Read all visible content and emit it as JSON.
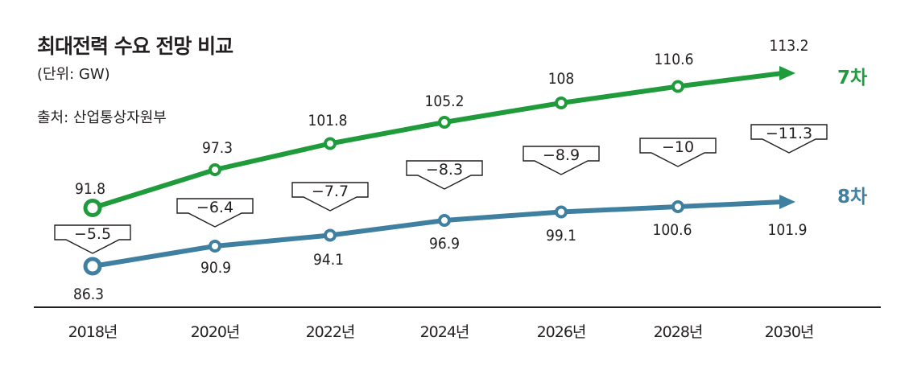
{
  "chart_data": {
    "type": "line",
    "title": "최대전력 수요 전망 비교",
    "unit": "(단위: GW)",
    "source": "출처: 산업통상자원부",
    "categories": [
      "2018년",
      "2020년",
      "2022년",
      "2024년",
      "2026년",
      "2028년",
      "2030년"
    ],
    "series": [
      {
        "name": "7차",
        "color": "#1f9b3c",
        "values": [
          91.8,
          97.3,
          101.8,
          105.2,
          108,
          110.6,
          113.2
        ],
        "labels": [
          "91.8",
          "97.3",
          "101.8",
          "105.2",
          "108",
          "110.6",
          "113.2"
        ]
      },
      {
        "name": "8차",
        "color": "#3f7f9f",
        "values": [
          86.3,
          90.9,
          94.1,
          96.9,
          99.1,
          100.6,
          101.9
        ],
        "labels": [
          "86.3",
          "90.9",
          "94.1",
          "96.9",
          "99.1",
          "100.6",
          "101.9"
        ]
      }
    ],
    "differences": [
      "−5.5",
      "−6.4",
      "−7.7",
      "−8.3",
      "−8.9",
      "−10",
      "−11.3"
    ]
  }
}
